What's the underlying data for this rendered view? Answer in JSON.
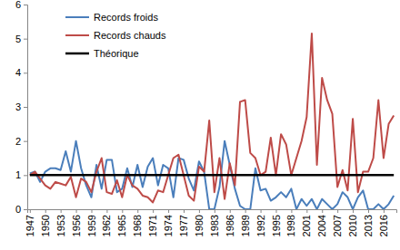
{
  "chart_data": {
    "type": "line",
    "x": [
      1947,
      1948,
      1949,
      1950,
      1951,
      1952,
      1953,
      1954,
      1955,
      1956,
      1957,
      1958,
      1959,
      1960,
      1961,
      1962,
      1963,
      1964,
      1965,
      1966,
      1967,
      1968,
      1969,
      1970,
      1971,
      1972,
      1973,
      1974,
      1975,
      1976,
      1977,
      1978,
      1979,
      1980,
      1981,
      1982,
      1983,
      1984,
      1985,
      1986,
      1987,
      1988,
      1989,
      1990,
      1991,
      1992,
      1993,
      1994,
      1995,
      1996,
      1997,
      1998,
      1999,
      2000,
      2001,
      2002,
      2003,
      2004,
      2005,
      2006,
      2007,
      2008,
      2009,
      2010,
      2011,
      2012,
      2013,
      2014,
      2015,
      2016,
      2017,
      2018
    ],
    "series": [
      {
        "name": "Records froids",
        "color": "#4a7ebb",
        "values": [
          1.05,
          1.1,
          0.8,
          1.1,
          1.2,
          1.2,
          1.15,
          1.7,
          1.1,
          2.0,
          1.2,
          0.7,
          0.35,
          1.3,
          0.6,
          1.45,
          1.45,
          0.5,
          0.6,
          1.2,
          0.65,
          1.3,
          0.65,
          1.25,
          1.5,
          0.7,
          1.3,
          1.2,
          0.35,
          1.5,
          1.45,
          0.9,
          0.55,
          1.4,
          1.1,
          0.0,
          0.0,
          0.65,
          2.0,
          1.3,
          0.6,
          0.1,
          0.0,
          0.0,
          1.2,
          0.55,
          0.6,
          0.25,
          0.35,
          0.5,
          0.35,
          0.6,
          0.0,
          0.3,
          0.1,
          0.3,
          0.0,
          0.3,
          0.15,
          0.0,
          0.15,
          0.5,
          0.35,
          0.0,
          0.35,
          0.55,
          0.0,
          0.0,
          0.15,
          0.0,
          0.15,
          0.4
        ]
      },
      {
        "name": "Records chauds",
        "color": "#be4b48",
        "values": [
          1.0,
          1.1,
          0.9,
          0.7,
          0.6,
          0.8,
          0.75,
          0.7,
          0.95,
          0.35,
          0.9,
          0.8,
          0.5,
          1.1,
          1.5,
          0.5,
          0.45,
          0.85,
          0.35,
          1.0,
          0.7,
          0.6,
          0.4,
          0.35,
          0.2,
          0.55,
          0.5,
          1.0,
          1.5,
          1.6,
          1.0,
          0.4,
          0.25,
          1.25,
          1.1,
          2.6,
          0.5,
          1.5,
          0.3,
          1.35,
          0.7,
          3.15,
          3.2,
          1.65,
          1.5,
          1.0,
          1.1,
          2.1,
          1.0,
          2.2,
          1.9,
          1.0,
          1.5,
          2.0,
          2.7,
          5.15,
          1.3,
          3.85,
          3.2,
          2.8,
          0.65,
          1.15,
          0.55,
          2.65,
          0.5,
          1.1,
          1.1,
          1.5,
          3.2,
          1.5,
          2.5,
          2.75
        ]
      },
      {
        "name": "Théorique",
        "color": "#000000",
        "values": [
          1,
          1,
          1,
          1,
          1,
          1,
          1,
          1,
          1,
          1,
          1,
          1,
          1,
          1,
          1,
          1,
          1,
          1,
          1,
          1,
          1,
          1,
          1,
          1,
          1,
          1,
          1,
          1,
          1,
          1,
          1,
          1,
          1,
          1,
          1,
          1,
          1,
          1,
          1,
          1,
          1,
          1,
          1,
          1,
          1,
          1,
          1,
          1,
          1,
          1,
          1,
          1,
          1,
          1,
          1,
          1,
          1,
          1,
          1,
          1,
          1,
          1,
          1,
          1,
          1,
          1,
          1,
          1,
          1,
          1,
          1,
          1
        ]
      }
    ],
    "xlim": [
      1946.5,
      2018.5
    ],
    "xticks": [
      1947,
      1950,
      1953,
      1956,
      1959,
      1962,
      1965,
      1968,
      1971,
      1974,
      1977,
      1980,
      1983,
      1986,
      1989,
      1992,
      1995,
      1998,
      2001,
      2004,
      2007,
      2010,
      2013,
      2016
    ],
    "ylim": [
      0,
      6
    ],
    "yticks": [
      0,
      1,
      2,
      3,
      4,
      5,
      6
    ],
    "grid": false,
    "legend": "top-left"
  }
}
